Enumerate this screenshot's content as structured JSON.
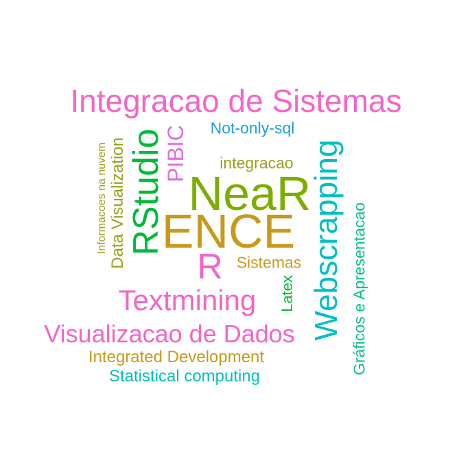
{
  "word_cloud": {
    "words": [
      {
        "text": "Integracao de Sistemas",
        "color": "#f564c8",
        "orientation": "horizontal"
      },
      {
        "text": "Not-only-sql",
        "color": "#1e9ee6",
        "orientation": "horizontal"
      },
      {
        "text": "integracao",
        "color": "#9aa01c",
        "orientation": "horizontal"
      },
      {
        "text": "NeaR",
        "color": "#7cae00",
        "orientation": "horizontal"
      },
      {
        "text": "ENCE",
        "color": "#c99a1a",
        "orientation": "horizontal"
      },
      {
        "text": "R",
        "color": "#f564c8",
        "orientation": "horizontal"
      },
      {
        "text": "Sistemas",
        "color": "#c99a1a",
        "orientation": "horizontal"
      },
      {
        "text": "Textmining",
        "color": "#f564c8",
        "orientation": "horizontal"
      },
      {
        "text": "Visualizacao de Dados",
        "color": "#f564c8",
        "orientation": "horizontal"
      },
      {
        "text": "Integrated Development",
        "color": "#c99a1a",
        "orientation": "horizontal"
      },
      {
        "text": "Statistical computing",
        "color": "#00bfc4",
        "orientation": "horizontal"
      },
      {
        "text": "Informacoes na nuvem",
        "color": "#9aa01c",
        "orientation": "vertical"
      },
      {
        "text": "Data Visualization",
        "color": "#9aa01c",
        "orientation": "vertical"
      },
      {
        "text": "RStudio",
        "color": "#00ba38",
        "orientation": "vertical"
      },
      {
        "text": "PIBIC",
        "color": "#e06ce0",
        "orientation": "vertical"
      },
      {
        "text": "Webscrapping",
        "color": "#00bfc4",
        "orientation": "vertical"
      },
      {
        "text": "Latex",
        "color": "#00ba38",
        "orientation": "vertical"
      },
      {
        "text": "Gráficos e Apresentacao",
        "color": "#00c08b",
        "orientation": "vertical"
      }
    ]
  }
}
